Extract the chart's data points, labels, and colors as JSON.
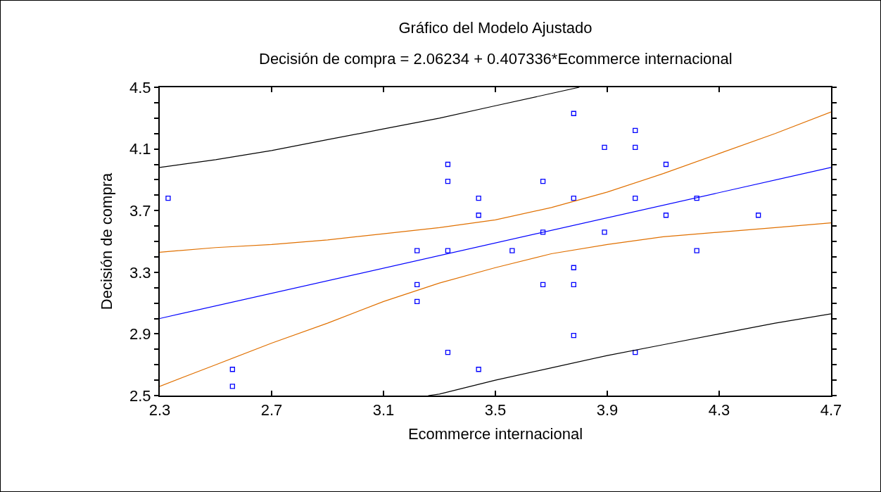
{
  "chart_data": {
    "type": "scatter",
    "title": "Gráfico del Modelo Ajustado",
    "subtitle": "Decisión de compra = 2.06234 + 0.407336*Ecommerce internacional",
    "xlabel": "Ecommerce internacional",
    "ylabel": "Decisión de compra",
    "xlim": [
      2.3,
      4.7
    ],
    "xticks": [
      2.3,
      2.7,
      3.1,
      3.5,
      3.9,
      4.3,
      4.7
    ],
    "ylim": [
      2.5,
      4.5
    ],
    "yticks": [
      2.5,
      {
        "value": 2.6,
        "label": null
      },
      {
        "value": 2.7,
        "label": null
      },
      {
        "value": 2.8,
        "label": null
      },
      2.9,
      {
        "value": 3.0,
        "label": null
      },
      {
        "value": 3.1,
        "label": null
      },
      {
        "value": 3.2,
        "label": null
      },
      3.3,
      {
        "value": 3.4,
        "label": null
      },
      {
        "value": 3.5,
        "label": null
      },
      {
        "value": 3.6,
        "label": null
      },
      3.7,
      {
        "value": 3.8,
        "label": null
      },
      {
        "value": 3.9,
        "label": null
      },
      {
        "value": 4.0,
        "label": null
      },
      4.1,
      {
        "value": 4.2,
        "label": null
      },
      {
        "value": 4.3,
        "label": null
      },
      {
        "value": 4.4,
        "label": null
      },
      4.5
    ],
    "grid": false,
    "series": [
      {
        "marker": "square",
        "color": "#0000ff",
        "x": [
          2.33,
          2.56,
          2.56,
          3.22,
          3.22,
          3.22,
          3.33,
          3.33,
          3.33,
          3.33,
          3.44,
          3.44,
          3.44,
          3.56,
          3.67,
          3.67,
          3.67,
          3.78,
          3.78,
          3.78,
          3.78,
          3.78,
          3.89,
          3.89,
          4.0,
          4.0,
          4.0,
          4.0,
          4.11,
          4.11,
          4.22,
          4.22,
          4.44
        ],
        "values": [
          3.78,
          2.67,
          2.56,
          3.44,
          3.22,
          3.11,
          4.0,
          3.89,
          3.44,
          2.78,
          3.78,
          3.67,
          2.67,
          3.44,
          3.89,
          3.56,
          3.22,
          4.33,
          3.78,
          3.33,
          3.22,
          2.89,
          4.11,
          3.56,
          4.22,
          4.11,
          3.78,
          2.78,
          4.0,
          3.67,
          3.78,
          3.44,
          3.67
        ]
      },
      {
        "type": "line",
        "color": "#0000ff",
        "x": [
          2.3,
          4.7
        ],
        "values": [
          3.0,
          3.98
        ]
      },
      {
        "type": "line",
        "color": "#e07000",
        "x": [
          2.3,
          2.5,
          2.7,
          2.9,
          3.1,
          3.3,
          3.5,
          3.7,
          3.9,
          4.1,
          4.3,
          4.5,
          4.7
        ],
        "values": [
          3.43,
          3.46,
          3.48,
          3.51,
          3.55,
          3.59,
          3.64,
          3.72,
          3.82,
          3.94,
          4.07,
          4.2,
          4.34
        ]
      },
      {
        "type": "line",
        "color": "#e07000",
        "x": [
          2.3,
          2.5,
          2.7,
          2.9,
          3.1,
          3.3,
          3.5,
          3.7,
          3.9,
          4.1,
          4.3,
          4.5,
          4.7
        ],
        "values": [
          2.56,
          2.7,
          2.84,
          2.97,
          3.11,
          3.23,
          3.33,
          3.42,
          3.48,
          3.53,
          3.56,
          3.59,
          3.62
        ]
      },
      {
        "type": "line",
        "color": "#000000",
        "x": [
          2.3,
          2.5,
          2.7,
          2.9,
          3.1,
          3.3,
          3.5,
          3.7,
          3.8
        ],
        "values": [
          3.98,
          4.03,
          4.09,
          4.16,
          4.23,
          4.3,
          4.38,
          4.46,
          4.5
        ]
      },
      {
        "type": "line",
        "color": "#000000",
        "x": [
          3.26,
          3.3,
          3.5,
          3.7,
          3.9,
          4.1,
          4.3,
          4.5,
          4.7
        ],
        "values": [
          2.5,
          2.51,
          2.6,
          2.68,
          2.76,
          2.83,
          2.9,
          2.97,
          3.03
        ]
      }
    ]
  }
}
